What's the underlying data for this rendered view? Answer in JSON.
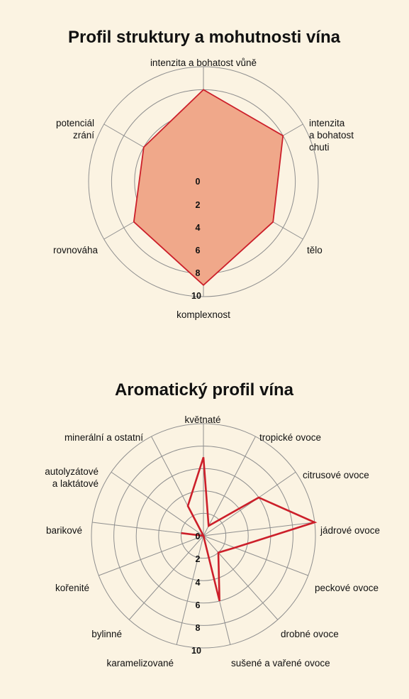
{
  "chart_data": [
    {
      "type": "radar",
      "title": "Profil struktury a mohutnosti vína",
      "categories": [
        "intenzita a bohatost vůně",
        "intenzita\na bohatost\nchuti",
        "tělo",
        "komplexnost",
        "rovnováha",
        "potenciál\nzrání"
      ],
      "series": [
        {
          "values": [
            8,
            8,
            7,
            9,
            7,
            6
          ]
        }
      ],
      "rlim": [
        0,
        10
      ],
      "ticks": [
        "0",
        "2",
        "4",
        "6",
        "8",
        "10"
      ],
      "fill_color": "#f0a88a",
      "line_color": "#cc1f2a",
      "grid_color": "#8f8f8f"
    },
    {
      "type": "radar",
      "title": "Aromatický profil vína",
      "categories": [
        "květnaté",
        "tropické ovoce",
        "citrusové ovoce",
        "jádrové ovoce",
        "peckové ovoce",
        "drobné ovoce",
        "sušené a vařené ovoce",
        "karamelizované",
        "bylinné",
        "kořenité",
        "barikové",
        "autolyzátové\na laktátové",
        "minerální a ostatní"
      ],
      "series": [
        {
          "values": [
            7,
            1,
            6,
            10,
            3,
            2,
            6,
            0,
            0,
            0,
            2,
            0,
            3
          ]
        }
      ],
      "rlim": [
        0,
        10
      ],
      "ticks": [
        "0",
        "2",
        "4",
        "6",
        "8",
        "10"
      ],
      "line_color": "#cc1f2a",
      "grid_color": "#8f8f8f"
    }
  ]
}
